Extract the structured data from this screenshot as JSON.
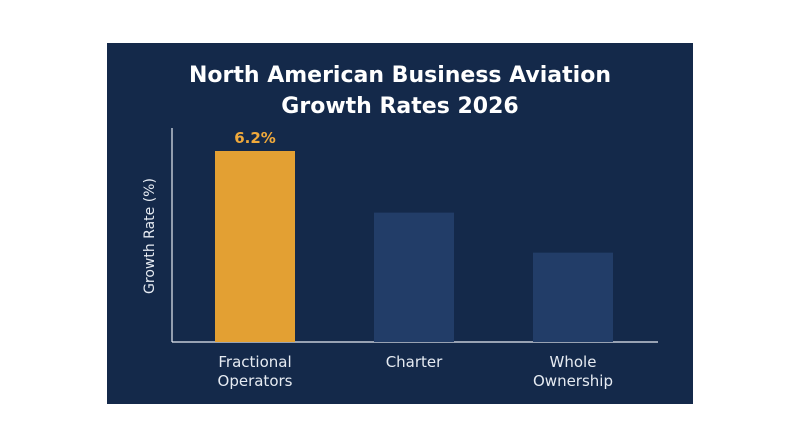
{
  "chart_data": {
    "type": "bar",
    "title": [
      "North American Business Aviation",
      "Growth Rates 2026"
    ],
    "xlabel": "",
    "ylabel": "Growth Rate (%)",
    "categories": [
      [
        "Fractional",
        "Operators"
      ],
      [
        "Charter"
      ],
      [
        "Whole",
        "Ownership"
      ]
    ],
    "values": [
      6.2,
      4.2,
      2.9
    ],
    "data_labels": [
      "6.2%",
      "",
      ""
    ],
    "highlight_index": 0,
    "ylim": [
      0,
      6.5
    ],
    "grid": false,
    "legend": "none"
  },
  "colors": {
    "background": "#14294a",
    "highlight_bar": "#e3a033",
    "bar": "#223d68",
    "axis": "#e6ebf2",
    "title": "#ffffff",
    "data_label": "#f0a93b"
  }
}
